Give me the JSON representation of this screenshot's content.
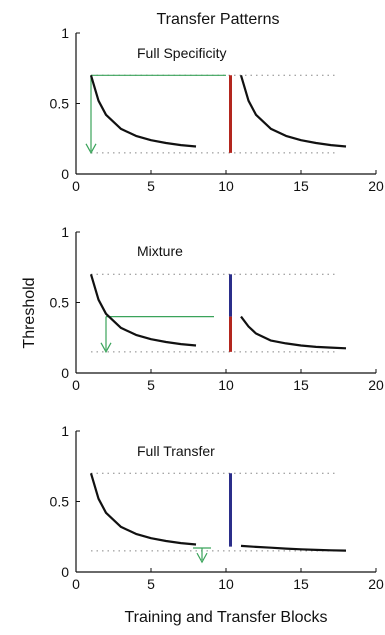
{
  "title": "Transfer Patterns",
  "ylabel": "Threshold",
  "xlabel": "Training and Transfer Blocks",
  "colors": {
    "curve": "#111111",
    "dotted": "#888888",
    "red": "#b3261e",
    "blue": "#2b2e8a",
    "green": "#3aa35a"
  },
  "chart_data": [
    {
      "type": "line",
      "label": "Full Specificity",
      "xlim": [
        0,
        20
      ],
      "ylim": [
        0,
        1
      ],
      "xticks": [
        0,
        5,
        10,
        15,
        20
      ],
      "yticks": [
        0,
        0.5,
        1
      ],
      "ytick_labels": [
        "0",
        "0.5",
        "1"
      ],
      "segments": [
        {
          "x": [
            1,
            1.5,
            2,
            3,
            4,
            5,
            6,
            7,
            8
          ],
          "y": [
            0.7,
            0.52,
            0.42,
            0.32,
            0.27,
            0.24,
            0.22,
            0.205,
            0.195
          ]
        },
        {
          "x": [
            11,
            11.5,
            12,
            13,
            14,
            15,
            16,
            17,
            18
          ],
          "y": [
            0.7,
            0.52,
            0.42,
            0.32,
            0.27,
            0.24,
            0.22,
            0.205,
            0.195
          ]
        }
      ],
      "dotted_levels": [
        0.7,
        0.15
      ],
      "dotted_range": [
        1,
        17.5
      ],
      "vbar": {
        "x": 10.3,
        "from": 0.15,
        "to": 0.7,
        "parts": [
          {
            "from": 0.15,
            "to": 0.7,
            "color": "red"
          }
        ]
      },
      "green_h": {
        "y": 0.7,
        "x1": 1,
        "x2": 10
      },
      "green_v": {
        "x": 1,
        "y1": 0.7,
        "y2": 0.15
      }
    },
    {
      "type": "line",
      "label": "Mixture",
      "xlim": [
        0,
        20
      ],
      "ylim": [
        0,
        1
      ],
      "xticks": [
        0,
        5,
        10,
        15,
        20
      ],
      "yticks": [
        0,
        0.5,
        1
      ],
      "ytick_labels": [
        "0",
        "0.5",
        "1"
      ],
      "segments": [
        {
          "x": [
            1,
            1.5,
            2,
            3,
            4,
            5,
            6,
            7,
            8
          ],
          "y": [
            0.7,
            0.52,
            0.42,
            0.32,
            0.27,
            0.24,
            0.22,
            0.205,
            0.195
          ]
        },
        {
          "x": [
            11,
            11.5,
            12,
            13,
            14,
            15,
            16,
            17,
            18
          ],
          "y": [
            0.4,
            0.33,
            0.28,
            0.23,
            0.21,
            0.195,
            0.185,
            0.18,
            0.175
          ]
        }
      ],
      "dotted_levels": [
        0.7,
        0.15
      ],
      "dotted_range": [
        1,
        17.5
      ],
      "vbar": {
        "x": 10.3,
        "from": 0.15,
        "to": 0.7,
        "parts": [
          {
            "from": 0.4,
            "to": 0.7,
            "color": "blue"
          },
          {
            "from": 0.15,
            "to": 0.4,
            "color": "red"
          }
        ]
      },
      "green_h": {
        "y": 0.4,
        "x1": 2,
        "x2": 9.2
      },
      "green_v": {
        "x": 2,
        "y1": 0.4,
        "y2": 0.15
      }
    },
    {
      "type": "line",
      "label": "Full Transfer",
      "xlim": [
        0,
        20
      ],
      "ylim": [
        0,
        1
      ],
      "xticks": [
        0,
        5,
        10,
        15,
        20
      ],
      "yticks": [
        0,
        0.5,
        1
      ],
      "ytick_labels": [
        "0",
        "0.5",
        "1"
      ],
      "segments": [
        {
          "x": [
            1,
            1.5,
            2,
            3,
            4,
            5,
            6,
            7,
            8
          ],
          "y": [
            0.7,
            0.52,
            0.42,
            0.32,
            0.27,
            0.24,
            0.22,
            0.205,
            0.195
          ]
        },
        {
          "x": [
            11,
            12,
            13,
            14,
            15,
            16,
            17,
            18
          ],
          "y": [
            0.185,
            0.178,
            0.172,
            0.166,
            0.161,
            0.157,
            0.154,
            0.152
          ]
        }
      ],
      "dotted_levels": [
        0.7,
        0.15
      ],
      "dotted_range": [
        1,
        17.5
      ],
      "vbar": {
        "x": 10.3,
        "from": 0.18,
        "to": 0.7,
        "parts": [
          {
            "from": 0.18,
            "to": 0.7,
            "color": "blue"
          }
        ]
      },
      "green_h": {
        "y": 0.17,
        "x1": 7.8,
        "x2": 9.0
      },
      "green_v": {
        "x": 8.4,
        "y1": 0.17,
        "y2": 0.07
      }
    }
  ]
}
